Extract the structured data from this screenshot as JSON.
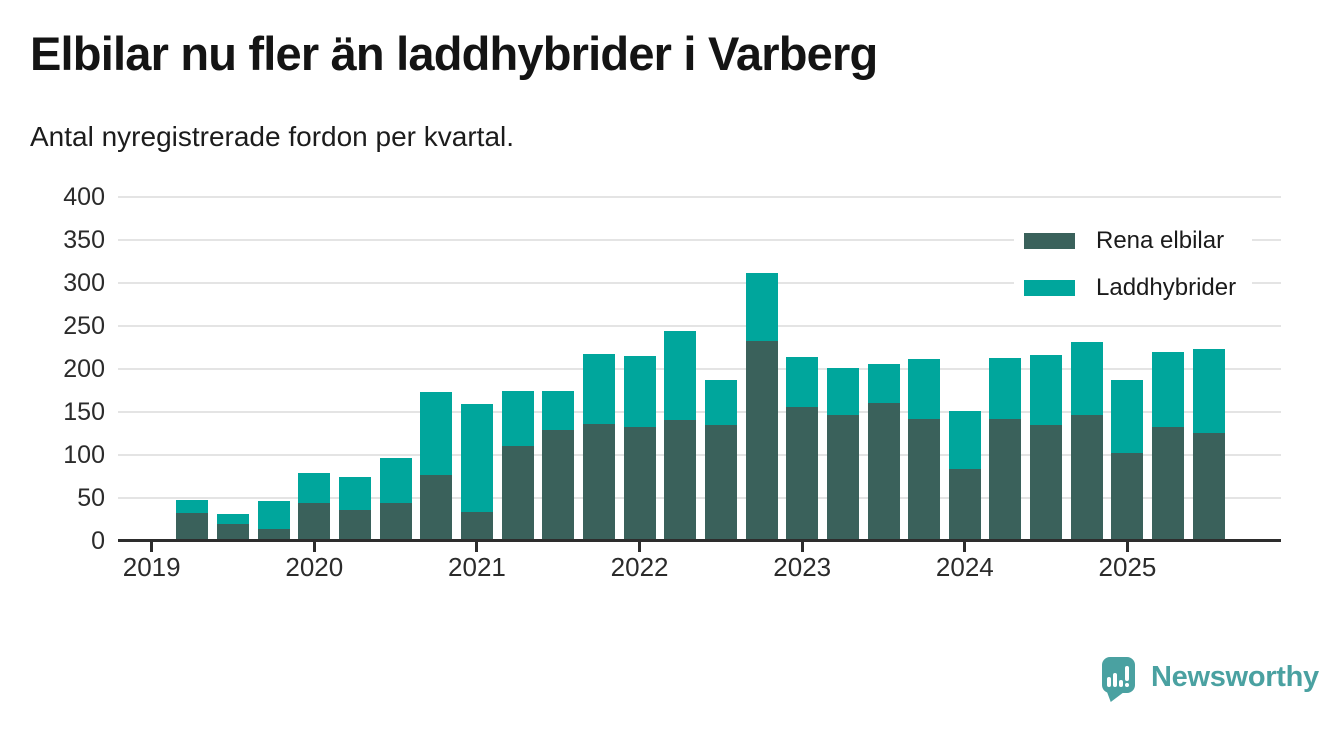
{
  "chart_data": {
    "type": "bar",
    "stacked": true,
    "title": "Elbilar nu fler än laddhybrider i Varberg",
    "subtitle": "Antal nyregistrerade fordon per kvartal.",
    "categories": [
      "2019 Q2",
      "2019 Q3",
      "2019 Q4",
      "2020 Q1",
      "2020 Q2",
      "2020 Q3",
      "2020 Q4",
      "2021 Q1",
      "2021 Q2",
      "2021 Q3",
      "2021 Q4",
      "2022 Q1",
      "2022 Q2",
      "2022 Q3",
      "2022 Q4",
      "2023 Q1",
      "2023 Q2",
      "2023 Q3",
      "2023 Q4",
      "2024 Q1",
      "2024 Q2",
      "2024 Q3",
      "2024 Q4",
      "2025 Q1",
      "2025 Q2",
      "2025 Q3"
    ],
    "series": [
      {
        "name": "Rena elbilar",
        "color": "#3a615b",
        "values": [
          33,
          20,
          14,
          44,
          36,
          44,
          77,
          34,
          110,
          129,
          136,
          133,
          141,
          135,
          232,
          156,
          147,
          160,
          142,
          84,
          142,
          135,
          146,
          102,
          133,
          126
        ]
      },
      {
        "name": "Laddhybrider",
        "color": "#00a69c",
        "values": [
          15,
          11,
          32,
          35,
          38,
          52,
          96,
          125,
          64,
          46,
          82,
          82,
          103,
          52,
          80,
          58,
          54,
          46,
          70,
          67,
          71,
          81,
          85,
          85,
          87,
          97
        ]
      }
    ],
    "xticks": [
      "2019",
      "2020",
      "2021",
      "2022",
      "2023",
      "2024",
      "2025"
    ],
    "yticks": [
      0,
      50,
      100,
      150,
      200,
      250,
      300,
      350,
      400
    ],
    "ylim": [
      0,
      400
    ],
    "grid": "horizontal",
    "legend_position": "top-right"
  },
  "branding": {
    "logo_text": "Newsworthy",
    "logo_color": "#4aa1a1"
  }
}
